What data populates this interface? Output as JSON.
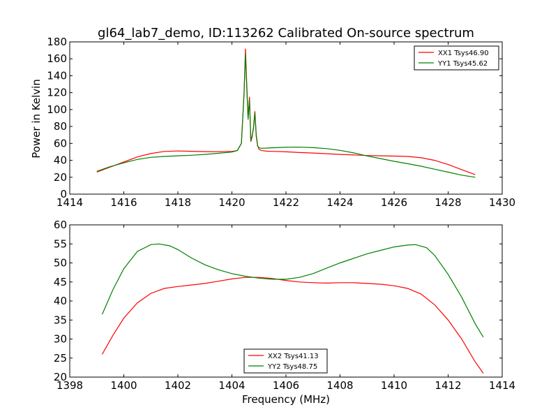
{
  "chart_data": [
    {
      "type": "line",
      "title": "gl64_lab7_demo, ID:113262 Calibrated On-source spectrum",
      "xlabel": "",
      "ylabel": "Power in Kelvin",
      "xlim": [
        1414,
        1430
      ],
      "ylim": [
        0,
        180
      ],
      "xticks": [
        "1414",
        "1416",
        "1418",
        "1420",
        "1422",
        "1424",
        "1426",
        "1428",
        "1430"
      ],
      "yticks": [
        "0",
        "20",
        "40",
        "60",
        "80",
        "100",
        "120",
        "140",
        "160",
        "180"
      ],
      "grid": false,
      "legend_position": "top-right",
      "series": [
        {
          "name": "XX1 Tsys46.90",
          "color": "#ff0000",
          "x": [
            1415.0,
            1415.5,
            1416.0,
            1416.5,
            1417.0,
            1417.5,
            1418.0,
            1418.5,
            1419.0,
            1419.5,
            1420.0,
            1420.2,
            1420.35,
            1420.45,
            1420.5,
            1420.55,
            1420.6,
            1420.65,
            1420.7,
            1420.75,
            1420.8,
            1420.85,
            1420.9,
            1420.95,
            1421.0,
            1421.1,
            1421.3,
            1421.5,
            1422.0,
            1422.5,
            1423.0,
            1423.5,
            1424.0,
            1424.5,
            1425.0,
            1425.5,
            1426.0,
            1426.5,
            1427.0,
            1427.5,
            1428.0,
            1428.5,
            1429.0
          ],
          "values": [
            26,
            32,
            38,
            44,
            48,
            50.5,
            51,
            50.7,
            50.3,
            50.2,
            50.5,
            51.5,
            60,
            120,
            172,
            130,
            90,
            115,
            62,
            68,
            80,
            98,
            70,
            58,
            53,
            51.5,
            50.8,
            50.6,
            50,
            49.2,
            48.6,
            47.8,
            47,
            46.3,
            45.7,
            45.3,
            45,
            44.6,
            43,
            40,
            35,
            29,
            23
          ]
        },
        {
          "name": "YY1 Tsys45.62",
          "color": "#008000",
          "x": [
            1415.0,
            1415.5,
            1416.0,
            1416.5,
            1417.0,
            1417.5,
            1418.0,
            1418.5,
            1419.0,
            1419.5,
            1420.0,
            1420.2,
            1420.35,
            1420.45,
            1420.5,
            1420.55,
            1420.6,
            1420.65,
            1420.7,
            1420.75,
            1420.8,
            1420.85,
            1420.9,
            1420.95,
            1421.0,
            1421.1,
            1421.3,
            1421.5,
            1422.0,
            1422.5,
            1423.0,
            1423.5,
            1424.0,
            1424.5,
            1425.0,
            1425.5,
            1426.0,
            1426.5,
            1427.0,
            1427.5,
            1428.0,
            1428.5,
            1429.0
          ],
          "values": [
            27,
            32.5,
            37,
            41,
            43.5,
            44.6,
            45.3,
            46,
            47,
            48.3,
            49.8,
            51.5,
            60,
            118,
            166,
            125,
            88,
            112,
            63,
            70,
            78,
            96,
            68,
            57,
            55,
            54.2,
            54.5,
            54.8,
            55.4,
            55.6,
            55,
            53.8,
            51.8,
            48.8,
            45.2,
            42,
            38.8,
            36,
            33,
            29.5,
            26,
            22.5,
            20
          ]
        }
      ]
    },
    {
      "type": "line",
      "title": "",
      "xlabel": "Frequency (MHz)",
      "ylabel": "",
      "xlim": [
        1398,
        1414
      ],
      "ylim": [
        20,
        60
      ],
      "xticks": [
        "1398",
        "1400",
        "1402",
        "1404",
        "1406",
        "1408",
        "1410",
        "1412",
        "1414"
      ],
      "yticks": [
        "20",
        "25",
        "30",
        "35",
        "40",
        "45",
        "50",
        "55",
        "60"
      ],
      "grid": false,
      "legend_position": "bottom-center",
      "series": [
        {
          "name": "XX2 Tsys41.13",
          "color": "#ff0000",
          "x": [
            1399.2,
            1399.6,
            1400.0,
            1400.5,
            1401.0,
            1401.5,
            1402.0,
            1402.5,
            1403.0,
            1403.5,
            1404.0,
            1404.5,
            1405.0,
            1405.5,
            1406.0,
            1406.5,
            1407.0,
            1407.5,
            1408.0,
            1408.5,
            1409.0,
            1409.5,
            1410.0,
            1410.5,
            1411.0,
            1411.5,
            1412.0,
            1412.5,
            1413.0,
            1413.3
          ],
          "values": [
            26,
            31,
            35.5,
            39.5,
            42,
            43.3,
            43.8,
            44.2,
            44.6,
            45.2,
            45.8,
            46.2,
            46.2,
            45.9,
            45.4,
            45,
            44.8,
            44.7,
            44.8,
            44.8,
            44.6,
            44.4,
            44,
            43.3,
            41.8,
            39,
            35,
            30,
            24,
            21
          ]
        },
        {
          "name": "YY2 Tsys48.75",
          "color": "#008000",
          "x": [
            1399.2,
            1399.6,
            1400.0,
            1400.5,
            1401.0,
            1401.3,
            1401.7,
            1402.0,
            1402.5,
            1403.0,
            1403.5,
            1404.0,
            1404.5,
            1405.0,
            1405.5,
            1406.0,
            1406.5,
            1407.0,
            1407.5,
            1408.0,
            1408.5,
            1409.0,
            1409.5,
            1410.0,
            1410.5,
            1410.8,
            1411.2,
            1411.5,
            1412.0,
            1412.5,
            1413.0,
            1413.3
          ],
          "values": [
            36.5,
            43,
            48.5,
            53,
            54.8,
            55,
            54.5,
            53.5,
            51.3,
            49.5,
            48.2,
            47.2,
            46.5,
            46,
            45.7,
            45.7,
            46.2,
            47.2,
            48.6,
            50,
            51.2,
            52.4,
            53.3,
            54.2,
            54.7,
            54.8,
            54,
            52,
            47,
            41,
            34,
            30.5
          ]
        }
      ]
    }
  ]
}
